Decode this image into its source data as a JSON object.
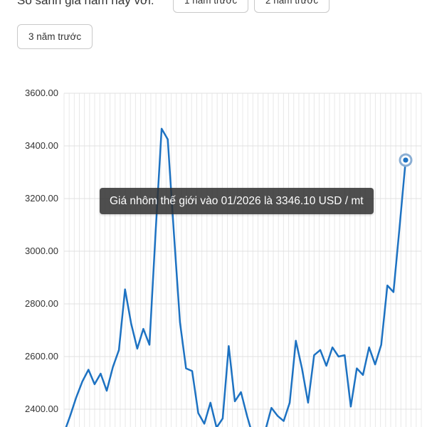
{
  "header": {
    "compare_label": "So sánh giá năm nay với:",
    "buttons": [
      {
        "label": "1 năm trước"
      },
      {
        "label": "2 năm trước"
      },
      {
        "label": "3 năm trước"
      }
    ]
  },
  "tooltip": {
    "text": "Giá nhôm thế giới vào 01/2026 là 3346.10 USD / mt"
  },
  "chart_data": {
    "type": "line",
    "title": "",
    "xlabel": "",
    "ylabel": "",
    "ylim": [
      2400,
      3600
    ],
    "yticks": [
      "3600.00",
      "3400.00",
      "3200.00",
      "3000.00",
      "2800.00",
      "2600.00",
      "2400.00"
    ],
    "grid": true,
    "legend_position": "none",
    "line_color": "#1d72c2",
    "grid_color_vertical": "#e8e8e8",
    "grid_color_horizontal": "#e0e0e0",
    "series": [
      {
        "name": "Giá nhôm thế giới",
        "values": [
          2310,
          2375,
          2445,
          2505,
          2550,
          2495,
          2535,
          2470,
          2560,
          2625,
          2855,
          2725,
          2630,
          2705,
          2645,
          3070,
          3465,
          3425,
          3070,
          2730,
          2555,
          2545,
          2385,
          2345,
          2425,
          2330,
          2365,
          2640,
          2430,
          2465,
          2375,
          2295,
          2275,
          2320,
          2405,
          2375,
          2355,
          2425,
          2660,
          2555,
          2425,
          2605,
          2625,
          2565,
          2635,
          2600,
          2605,
          2410,
          2555,
          2530,
          2635,
          2570,
          2645,
          2870,
          2845,
          3090,
          3346.1
        ]
      }
    ],
    "highlight": {
      "index": 56,
      "x_label": "01/2026",
      "value": 3346.1,
      "unit": "USD / mt"
    }
  }
}
